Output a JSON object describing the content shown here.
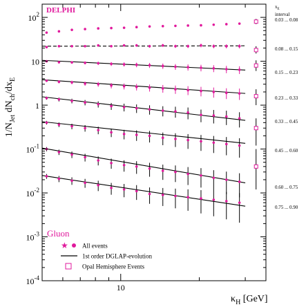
{
  "chart_data": {
    "type": "scatter",
    "experiment_label": "DELPHI",
    "flavour_label": "Gluon",
    "ylabel": "1/N_Jet dN_ch/dx_E",
    "xlabel": "κ_H [GeV]",
    "x_scale": "log",
    "y_scale": "log",
    "xlim": [
      5,
      36
    ],
    "ylim": [
      0.0001,
      200
    ],
    "x_ticks": [
      {
        "value": 10,
        "label": "10"
      }
    ],
    "y_ticks": [
      {
        "value": 100,
        "base": "10",
        "exp": "2"
      },
      {
        "value": 10,
        "base": "10",
        "exp": ""
      },
      {
        "value": 1,
        "base": "1",
        "exp": ""
      },
      {
        "value": 0.1,
        "base": "10",
        "exp": "-1"
      },
      {
        "value": 0.01,
        "base": "10",
        "exp": "-2"
      },
      {
        "value": 0.001,
        "base": "10",
        "exp": "-3"
      },
      {
        "value": 0.0001,
        "base": "10",
        "exp": "-4"
      }
    ],
    "interval_header": {
      "symbol": "x",
      "sub": "E",
      "word": "interval"
    },
    "interval_labels": [
      "0.03 ... 0.08",
      "0.08 ... 0.15",
      "0.15 ... 0.23",
      "0.23 ... 0.33",
      "0.33 ... 0.45",
      "0.45 ... 0.60",
      "0.60 ... 0.75",
      "0.75 ... 0.90"
    ],
    "legend": {
      "placement": "bottom-left",
      "items": [
        {
          "marker": "star-dot",
          "label": "All events"
        },
        {
          "marker": "line",
          "label": "1st order DGLAP-evolution"
        },
        {
          "marker": "open-square",
          "label": "Opal Hemisphere Events"
        }
      ]
    },
    "series": [
      {
        "interval": "0.03 ... 0.08",
        "fit": null,
        "fit_style": "none",
        "x": [
          5.2,
          5.8,
          6.5,
          7.3,
          8.2,
          9.2,
          10.3,
          11.5,
          12.9,
          14.5,
          16.2,
          18.1,
          20.3,
          22.7,
          25.4,
          28.5
        ],
        "y": [
          45,
          48,
          52,
          54,
          56,
          57,
          58,
          60,
          62,
          63,
          64,
          65,
          66,
          68,
          70,
          72
        ],
        "opal": {
          "x": 33,
          "y": 80,
          "ylo": 70,
          "yhi": 92
        }
      },
      {
        "interval": "0.08 ... 0.15",
        "fit": [
          [
            5.0,
            22
          ],
          [
            30,
            22.5
          ]
        ],
        "fit_style": "dashed",
        "x": [
          5.2,
          5.8,
          6.5,
          7.3,
          8.2,
          9.2,
          10.3,
          11.5,
          12.9,
          14.5,
          16.2,
          18.1,
          20.3,
          22.7,
          25.4,
          28.5
        ],
        "y": [
          21,
          22,
          22,
          22,
          23,
          22,
          23,
          23,
          22,
          23,
          22,
          22,
          23,
          22,
          22,
          22
        ],
        "opal": {
          "x": 33,
          "y": 18,
          "ylo": 15,
          "yhi": 22
        }
      },
      {
        "interval": "0.15 ... 0.23",
        "fit": [
          [
            5.0,
            10.5
          ],
          [
            30,
            6.3
          ]
        ],
        "fit_style": "solid",
        "x": [
          5.2,
          5.8,
          6.5,
          7.3,
          8.2,
          9.2,
          10.3,
          11.5,
          12.9,
          14.5,
          16.2,
          18.1,
          20.3,
          22.7,
          25.4,
          28.5
        ],
        "y": [
          10.0,
          9.5,
          9.4,
          9.2,
          9.0,
          8.7,
          8.5,
          8.3,
          8.1,
          7.8,
          7.5,
          7.3,
          7.1,
          6.9,
          6.6,
          6.4
        ],
        "opal": {
          "x": 33,
          "y": 8.0,
          "ylo": 6.0,
          "yhi": 10.5
        }
      },
      {
        "interval": "0.23 ... 0.33",
        "fit": [
          [
            5.0,
            3.8
          ],
          [
            30,
            1.85
          ]
        ],
        "fit_style": "solid",
        "x": [
          5.2,
          5.8,
          6.5,
          7.3,
          8.2,
          9.2,
          10.3,
          11.5,
          12.9,
          14.5,
          16.2,
          18.1,
          20.3,
          22.7,
          25.4,
          28.5
        ],
        "y": [
          3.6,
          3.4,
          3.3,
          3.1,
          3.0,
          2.8,
          2.7,
          2.6,
          2.5,
          2.4,
          2.3,
          2.2,
          2.1,
          2.0,
          1.9,
          1.85
        ],
        "opal": {
          "x": 33,
          "y": 1.6,
          "ylo": 1.0,
          "yhi": 2.3
        }
      },
      {
        "interval": "0.33 ... 0.45",
        "fit": [
          [
            5.0,
            1.55
          ],
          [
            30,
            0.45
          ]
        ],
        "fit_style": "solid",
        "x": [
          5.2,
          5.8,
          6.5,
          7.3,
          8.2,
          9.2,
          10.3,
          11.5,
          12.9,
          14.5,
          16.2,
          18.1,
          20.3,
          22.7,
          25.4,
          28.5
        ],
        "y": [
          1.45,
          1.35,
          1.25,
          1.15,
          1.05,
          0.95,
          0.9,
          0.85,
          0.8,
          0.75,
          0.72,
          0.68,
          0.6,
          0.58,
          0.55,
          0.5
        ],
        "opal": {
          "x": 33,
          "y": 0.3,
          "ylo": 0.12,
          "yhi": 0.5
        }
      },
      {
        "interval": "0.45 ... 0.60",
        "fit": [
          [
            5.0,
            0.42
          ],
          [
            30,
            0.135
          ]
        ],
        "fit_style": "solid",
        "x": [
          5.2,
          5.8,
          6.5,
          7.3,
          8.2,
          9.2,
          10.3,
          11.5,
          12.9,
          14.5,
          16.2,
          18.1,
          20.3,
          22.7,
          25.4,
          28.5
        ],
        "y": [
          0.4,
          0.36,
          0.33,
          0.3,
          0.27,
          0.24,
          0.22,
          0.21,
          0.2,
          0.18,
          0.17,
          0.16,
          0.15,
          0.14,
          0.13,
          0.12
        ],
        "opal": {
          "x": 33,
          "y": 0.04,
          "ylo": 0.012,
          "yhi": 0.1
        }
      },
      {
        "interval": "0.60 ... 0.75",
        "fit": [
          [
            5.0,
            0.105
          ],
          [
            30,
            0.017
          ]
        ],
        "fit_style": "solid",
        "x": [
          5.2,
          5.8,
          6.5,
          7.3,
          8.2,
          9.2,
          10.3,
          11.5,
          12.9,
          14.5,
          16.2,
          18.1,
          20.3,
          22.7,
          25.4,
          28.5
        ],
        "y": [
          0.1,
          0.085,
          0.075,
          0.065,
          0.055,
          0.048,
          0.043,
          0.04,
          0.036,
          0.032,
          0.03,
          0.027,
          0.025,
          0.022,
          0.02,
          0.018
        ],
        "opal": null
      },
      {
        "interval": "0.75 ... 0.90",
        "fit": [
          [
            5.0,
            0.025
          ],
          [
            30,
            0.005
          ]
        ],
        "fit_style": "solid",
        "x": [
          5.2,
          5.8,
          6.5,
          7.3,
          8.2,
          9.2,
          10.3,
          11.5,
          12.9,
          14.5,
          16.2,
          18.1,
          20.3,
          22.7,
          25.4,
          28.5
        ],
        "y": [
          0.024,
          0.021,
          0.019,
          0.017,
          0.015,
          0.013,
          0.012,
          0.011,
          0.0095,
          0.009,
          0.0085,
          0.008,
          0.0075,
          0.007,
          0.0065,
          0.006
        ],
        "opal": null
      }
    ],
    "grid": false
  }
}
